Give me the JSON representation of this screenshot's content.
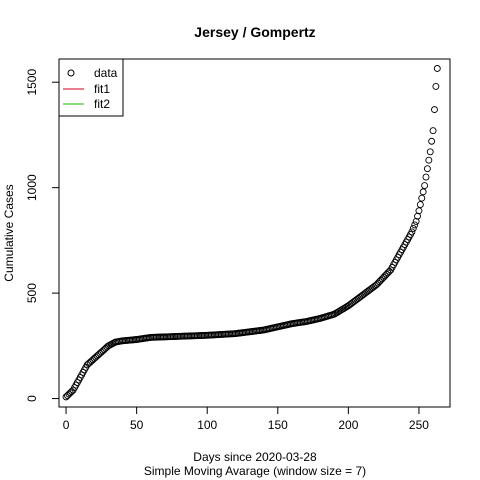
{
  "chart_data": {
    "type": "scatter",
    "title": "Jersey / Gompertz",
    "xlabel": "Days since 2020-03-28",
    "xlabel2": "Simple Moving Avarage (window size = 7)",
    "ylabel": "Cumulative Cases",
    "xlim": [
      -5,
      272
    ],
    "ylim": [
      -40,
      1610
    ],
    "xticks": [
      0,
      50,
      100,
      150,
      200,
      250
    ],
    "yticks": [
      0,
      500,
      1000,
      1500
    ],
    "legend": {
      "position": "top-left",
      "entries": [
        {
          "label": "data",
          "kind": "point",
          "color": "#000000"
        },
        {
          "label": "fit1",
          "kind": "line",
          "color": "#DF536B"
        },
        {
          "label": "fit2",
          "kind": "line",
          "color": "#61D04F"
        }
      ]
    },
    "series": [
      {
        "name": "data",
        "anchors": [
          [
            0,
            8
          ],
          [
            5,
            40
          ],
          [
            10,
            100
          ],
          [
            15,
            160
          ],
          [
            20,
            190
          ],
          [
            25,
            220
          ],
          [
            30,
            250
          ],
          [
            35,
            268
          ],
          [
            40,
            274
          ],
          [
            50,
            280
          ],
          [
            60,
            290
          ],
          [
            80,
            295
          ],
          [
            100,
            300
          ],
          [
            120,
            308
          ],
          [
            140,
            325
          ],
          [
            160,
            355
          ],
          [
            170,
            365
          ],
          [
            180,
            380
          ],
          [
            190,
            400
          ],
          [
            200,
            440
          ],
          [
            210,
            490
          ],
          [
            220,
            540
          ],
          [
            230,
            610
          ],
          [
            235,
            670
          ],
          [
            240,
            730
          ],
          [
            245,
            790
          ],
          [
            248,
            840
          ],
          [
            250,
            890
          ],
          [
            252,
            950
          ],
          [
            254,
            1010
          ],
          [
            256,
            1090
          ],
          [
            258,
            1170
          ],
          [
            260,
            1270
          ],
          [
            261,
            1370
          ],
          [
            262,
            1480
          ],
          [
            263,
            1565
          ]
        ]
      }
    ]
  }
}
